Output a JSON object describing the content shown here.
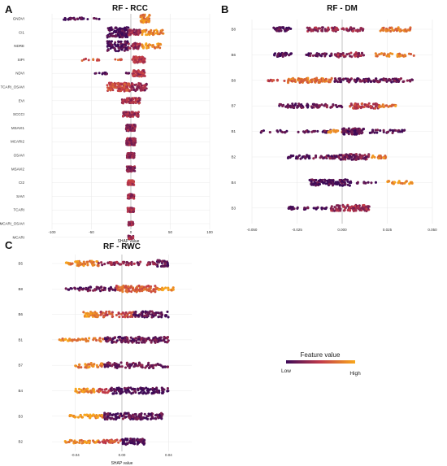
{
  "colors": {
    "low": "#3d0a57",
    "mid": "#c23a4a",
    "high": "#f9a81b",
    "grid": "#e6e6e6",
    "zero": "#9a9a9a"
  },
  "legend": {
    "title": "Feature value",
    "low_label": "Low",
    "high_label": "High"
  },
  "chart_data": [
    {
      "type": "scatter",
      "panel": "A",
      "title": "RF - RCC",
      "xlabel": "SHAP value",
      "xlim": [
        -100,
        100
      ],
      "xticks": [
        -100,
        -50,
        0,
        50,
        100
      ],
      "tick_labels": [
        "-100",
        "-50",
        "0",
        "50",
        "100"
      ],
      "features": [
        {
          "name": "GNDVI",
          "segments": [
            [
              -85,
              -60,
              30,
              0.05,
              1.0
            ],
            [
              -60,
              -38,
              8,
              0.05,
              0.5
            ],
            [
              12,
              24,
              50,
              0.8,
              3.5
            ]
          ]
        },
        {
          "name": "CI1",
          "segments": [
            [
              -30,
              -3,
              110,
              0.05,
              4.5
            ],
            [
              -3,
              12,
              40,
              0.35,
              2.5
            ],
            [
              14,
              42,
              45,
              0.85,
              2.2
            ]
          ]
        },
        {
          "name": "NDRE",
          "segments": [
            [
              -30,
              -3,
              100,
              0.05,
              4.5
            ],
            [
              -3,
              12,
              35,
              0.35,
              2.5
            ],
            [
              14,
              38,
              40,
              0.85,
              2.2
            ]
          ]
        },
        {
          "name": "SIPI",
          "segments": [
            [
              -62,
              -40,
              12,
              0.6,
              0.8
            ],
            [
              -20,
              -10,
              6,
              0.7,
              0.5
            ],
            [
              2,
              18,
              70,
              0.45,
              2.8
            ]
          ]
        },
        {
          "name": "NDVI",
          "segments": [
            [
              -48,
              -30,
              12,
              0.05,
              0.8
            ],
            [
              -10,
              -2,
              5,
              0.1,
              0.5
            ],
            [
              2,
              18,
              70,
              0.45,
              2.8
            ]
          ]
        },
        {
          "name": "TCARI_OSAVI",
          "segments": [
            [
              -30,
              0,
              110,
              0.55,
              3.8
            ],
            [
              0,
              20,
              60,
              0.3,
              3.4
            ]
          ]
        },
        {
          "name": "EVI",
          "segments": [
            [
              -12,
              12,
              90,
              0.4,
              2.3
            ]
          ]
        },
        {
          "name": "SCCCI",
          "segments": [
            [
              -10,
              10,
              90,
              0.35,
              2.1
            ]
          ]
        },
        {
          "name": "MSAVI1",
          "segments": [
            [
              -6,
              6,
              110,
              0.3,
              2.8
            ]
          ]
        },
        {
          "name": "MCARI2",
          "segments": [
            [
              -6,
              6,
              110,
              0.3,
              3.0
            ]
          ]
        },
        {
          "name": "OSAVI",
          "segments": [
            [
              -5,
              5,
              80,
              0.3,
              2.2
            ]
          ]
        },
        {
          "name": "MSAVI2",
          "segments": [
            [
              -5,
              5,
              80,
              0.3,
              2.2
            ]
          ]
        },
        {
          "name": "CI2",
          "segments": [
            [
              -4,
              4,
              70,
              0.45,
              2.0
            ]
          ]
        },
        {
          "name": "SAVI",
          "segments": [
            [
              -4,
              4,
              70,
              0.35,
              2.0
            ]
          ]
        },
        {
          "name": "TCARI",
          "segments": [
            [
              -4,
              4,
              60,
              0.35,
              1.8
            ]
          ]
        },
        {
          "name": "MCARI_OSAVI",
          "segments": [
            [
              -3,
              3,
              50,
              0.35,
              1.6
            ]
          ]
        },
        {
          "name": "MCARI",
          "segments": [
            [
              -3,
              3,
              40,
              0.35,
              1.4
            ]
          ]
        }
      ]
    },
    {
      "type": "scatter",
      "panel": "B",
      "title": "RF - DM",
      "xlabel": "",
      "xlim": [
        -0.05,
        0.05
      ],
      "xticks": [
        -0.05,
        -0.025,
        0,
        0.025,
        0.05
      ],
      "tick_labels": [
        "-0.050",
        "-0.025",
        "0.000",
        "0.025",
        "0.050"
      ],
      "features": [
        {
          "name": "B8",
          "segments": [
            [
              -0.038,
              -0.028,
              30,
              0.05,
              1.8
            ],
            [
              -0.02,
              0.012,
              80,
              0.3,
              1.8
            ],
            [
              0.02,
              0.038,
              45,
              0.75,
              1.8
            ]
          ]
        },
        {
          "name": "B6",
          "segments": [
            [
              -0.038,
              -0.028,
              30,
              0.05,
              1.6
            ],
            [
              -0.02,
              -0.005,
              25,
              0.1,
              1.2
            ],
            [
              -0.004,
              0.012,
              45,
              0.35,
              2.0
            ],
            [
              0.018,
              0.04,
              35,
              0.8,
              1.6
            ]
          ]
        },
        {
          "name": "B8",
          "segments": [
            [
              -0.042,
              -0.032,
              10,
              0.5,
              0.8
            ],
            [
              -0.03,
              -0.005,
              80,
              0.75,
              2.0
            ],
            [
              -0.005,
              0.04,
              110,
              0.15,
              1.6
            ]
          ]
        },
        {
          "name": "B7",
          "segments": [
            [
              -0.035,
              -0.018,
              45,
              0.1,
              1.8
            ],
            [
              -0.018,
              0.0,
              35,
              0.2,
              1.5
            ],
            [
              0.004,
              0.02,
              55,
              0.5,
              2.2
            ],
            [
              0.02,
              0.03,
              20,
              0.8,
              1.2
            ]
          ]
        },
        {
          "name": "B1",
          "segments": [
            [
              -0.045,
              -0.03,
              14,
              0.05,
              1.0
            ],
            [
              -0.025,
              -0.005,
              25,
              0.15,
              1.2
            ],
            [
              -0.008,
              0.002,
              20,
              0.85,
              1.2
            ],
            [
              0.0,
              0.012,
              70,
              0.1,
              2.6
            ],
            [
              0.015,
              0.035,
              30,
              0.1,
              1.4
            ]
          ]
        },
        {
          "name": "B2",
          "segments": [
            [
              -0.03,
              -0.018,
              30,
              0.05,
              1.6
            ],
            [
              -0.016,
              -0.002,
              30,
              0.15,
              1.4
            ],
            [
              -0.002,
              0.015,
              80,
              0.2,
              2.4
            ],
            [
              0.016,
              0.025,
              20,
              0.8,
              1.2
            ]
          ]
        },
        {
          "name": "B4",
          "segments": [
            [
              -0.018,
              0.005,
              110,
              0.05,
              2.8
            ],
            [
              0.008,
              0.02,
              10,
              0.15,
              0.7
            ],
            [
              0.025,
              0.04,
              25,
              0.9,
              1.2
            ]
          ]
        },
        {
          "name": "B3",
          "segments": [
            [
              -0.03,
              -0.018,
              20,
              0.05,
              1.4
            ],
            [
              -0.016,
              -0.005,
              15,
              0.1,
              1.0
            ],
            [
              -0.006,
              0.015,
              100,
              0.35,
              2.6
            ]
          ]
        }
      ]
    },
    {
      "type": "scatter",
      "panel": "C",
      "title": "RF - RWC",
      "xlabel": "SHAP value",
      "xlim": [
        -0.06,
        0.06
      ],
      "xticks": [
        -0.04,
        0,
        0.04
      ],
      "tick_labels": [
        "-0.04",
        "0.00",
        "0.04"
      ],
      "features": [
        {
          "name": "B5",
          "segments": [
            [
              -0.05,
              -0.04,
              10,
              0.85,
              0.8
            ],
            [
              -0.04,
              -0.02,
              45,
              0.8,
              2.2
            ],
            [
              -0.02,
              0.03,
              60,
              0.3,
              1.4
            ],
            [
              0.03,
              0.04,
              30,
              0.1,
              2.8
            ]
          ]
        },
        {
          "name": "B8",
          "segments": [
            [
              -0.05,
              -0.035,
              12,
              0.1,
              1.2
            ],
            [
              -0.035,
              -0.005,
              40,
              0.15,
              1.8
            ],
            [
              -0.005,
              0.03,
              90,
              0.65,
              2.8
            ],
            [
              0.03,
              0.045,
              20,
              0.9,
              1.2
            ]
          ]
        },
        {
          "name": "B6",
          "segments": [
            [
              -0.033,
              -0.02,
              30,
              0.85,
              2.2
            ],
            [
              -0.02,
              0.01,
              50,
              0.55,
              2.4
            ],
            [
              0.01,
              0.04,
              70,
              0.1,
              2.6
            ]
          ]
        },
        {
          "name": "B1",
          "segments": [
            [
              -0.055,
              -0.035,
              20,
              0.85,
              1.0
            ],
            [
              -0.035,
              -0.015,
              20,
              0.8,
              1.6
            ],
            [
              -0.015,
              0.04,
              140,
              0.15,
              2.6
            ]
          ]
        },
        {
          "name": "B7",
          "segments": [
            [
              -0.04,
              -0.015,
              40,
              0.8,
              2.0
            ],
            [
              -0.015,
              0.04,
              90,
              0.2,
              2.4
            ]
          ]
        },
        {
          "name": "B4",
          "segments": [
            [
              -0.04,
              -0.02,
              35,
              0.85,
              1.8
            ],
            [
              -0.02,
              -0.01,
              15,
              0.6,
              1.6
            ],
            [
              -0.01,
              0.04,
              110,
              0.05,
              2.6
            ]
          ]
        },
        {
          "name": "B3",
          "segments": [
            [
              -0.045,
              -0.015,
              50,
              0.85,
              1.6
            ],
            [
              -0.015,
              0.035,
              130,
              0.1,
              2.8
            ]
          ]
        },
        {
          "name": "B2",
          "segments": [
            [
              -0.05,
              -0.02,
              40,
              0.85,
              1.4
            ],
            [
              -0.02,
              0.0,
              30,
              0.6,
              1.6
            ],
            [
              0.0,
              0.02,
              70,
              0.05,
              2.6
            ]
          ]
        }
      ]
    }
  ]
}
